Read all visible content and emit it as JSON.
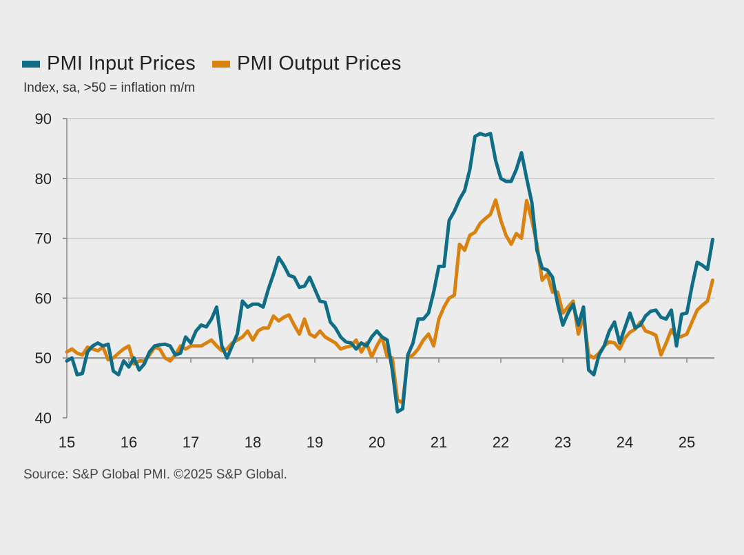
{
  "chart_data": {
    "type": "line",
    "subtitle": "Index, sa, >50 = inflation m/m",
    "source": "Source: S&P Global PMI. ©2025 S&P Global.",
    "x_start": "2015-01",
    "x_frequency": "monthly",
    "xlim": [
      2015,
      2025.5
    ],
    "x_ticks": [
      15,
      16,
      17,
      18,
      19,
      20,
      21,
      22,
      23,
      24,
      25
    ],
    "ylim": [
      40,
      90
    ],
    "y_ticks": [
      40,
      50,
      60,
      70,
      80,
      90
    ],
    "grid": true,
    "legend_placement": "top-left",
    "series": [
      {
        "name": "PMI Input Prices",
        "color": "#0f6e86",
        "values": [
          49.5,
          50,
          47.2,
          47.4,
          51,
          52,
          52.5,
          52,
          52.3,
          47.8,
          47.2,
          49.5,
          48.5,
          50,
          48,
          49,
          51,
          52,
          52.2,
          52.3,
          52,
          50.5,
          50.8,
          53.5,
          52.5,
          54.5,
          55.5,
          55.2,
          56.5,
          58.5,
          52,
          50,
          52,
          54,
          59.5,
          58.5,
          59,
          59,
          58.5,
          61.5,
          64,
          66.8,
          65.5,
          63.8,
          63.5,
          61.8,
          62,
          63.5,
          61.5,
          59.5,
          59.3,
          56,
          55,
          53.5,
          52.7,
          52.5,
          51.5,
          52.5,
          52,
          53.5,
          54.5,
          53.5,
          53,
          48,
          41,
          41.5,
          50.5,
          52.5,
          56.5,
          56.5,
          57.5,
          61,
          65.3,
          65.3,
          73,
          74.5,
          76.5,
          78,
          81.5,
          87,
          87.5,
          87.2,
          87.5,
          83,
          80,
          79.5,
          79.5,
          81.5,
          84.3,
          80,
          76,
          68,
          65,
          64.7,
          63.5,
          59,
          55.5,
          57.5,
          59,
          55.5,
          58.5,
          48,
          47.2,
          50.5,
          52,
          54.5,
          56,
          52.5,
          55,
          57.5,
          55,
          55.5,
          57,
          57.8,
          58,
          56.8,
          56.5,
          58,
          52,
          57.3,
          57.5,
          62,
          66,
          65.5,
          64.8,
          69.8
        ]
      },
      {
        "name": "PMI Output Prices",
        "color": "#d9820f",
        "values": [
          51,
          51.5,
          50.8,
          50.5,
          51.8,
          51.5,
          51.2,
          51.8,
          49.7,
          50,
          50.8,
          51.5,
          52,
          49,
          49.5,
          49.5,
          50.5,
          51.8,
          51.5,
          50,
          49.5,
          50.5,
          52,
          51.5,
          52,
          52,
          52,
          52.5,
          53,
          52,
          51.2,
          51.5,
          52.5,
          53,
          53.5,
          54.5,
          53,
          54.5,
          55,
          55,
          57,
          56.2,
          56.8,
          57.2,
          55.5,
          54,
          56.5,
          54,
          53.5,
          54.5,
          53.5,
          53,
          52.5,
          51.5,
          51.8,
          52,
          53,
          51,
          52.5,
          50.2,
          52,
          53.5,
          50.2,
          50,
          43,
          42.5,
          50,
          50.5,
          51.5,
          53,
          54,
          52,
          56.5,
          58.5,
          60,
          60.5,
          69,
          68,
          70.5,
          71,
          72.5,
          73.3,
          74,
          76.4,
          73,
          70.5,
          69,
          70.8,
          70,
          76.3,
          73,
          69,
          63,
          64,
          61,
          61,
          57.5,
          58.5,
          59.5,
          54,
          57,
          50.5,
          50,
          50.8,
          52,
          52.7,
          52.5,
          51.5,
          53.3,
          54.3,
          54.8,
          56,
          54.5,
          54.2,
          53.8,
          50.5,
          52.5,
          54.7,
          53.4,
          53.6,
          54,
          56,
          58,
          58.8,
          59.5,
          63
        ]
      }
    ]
  }
}
